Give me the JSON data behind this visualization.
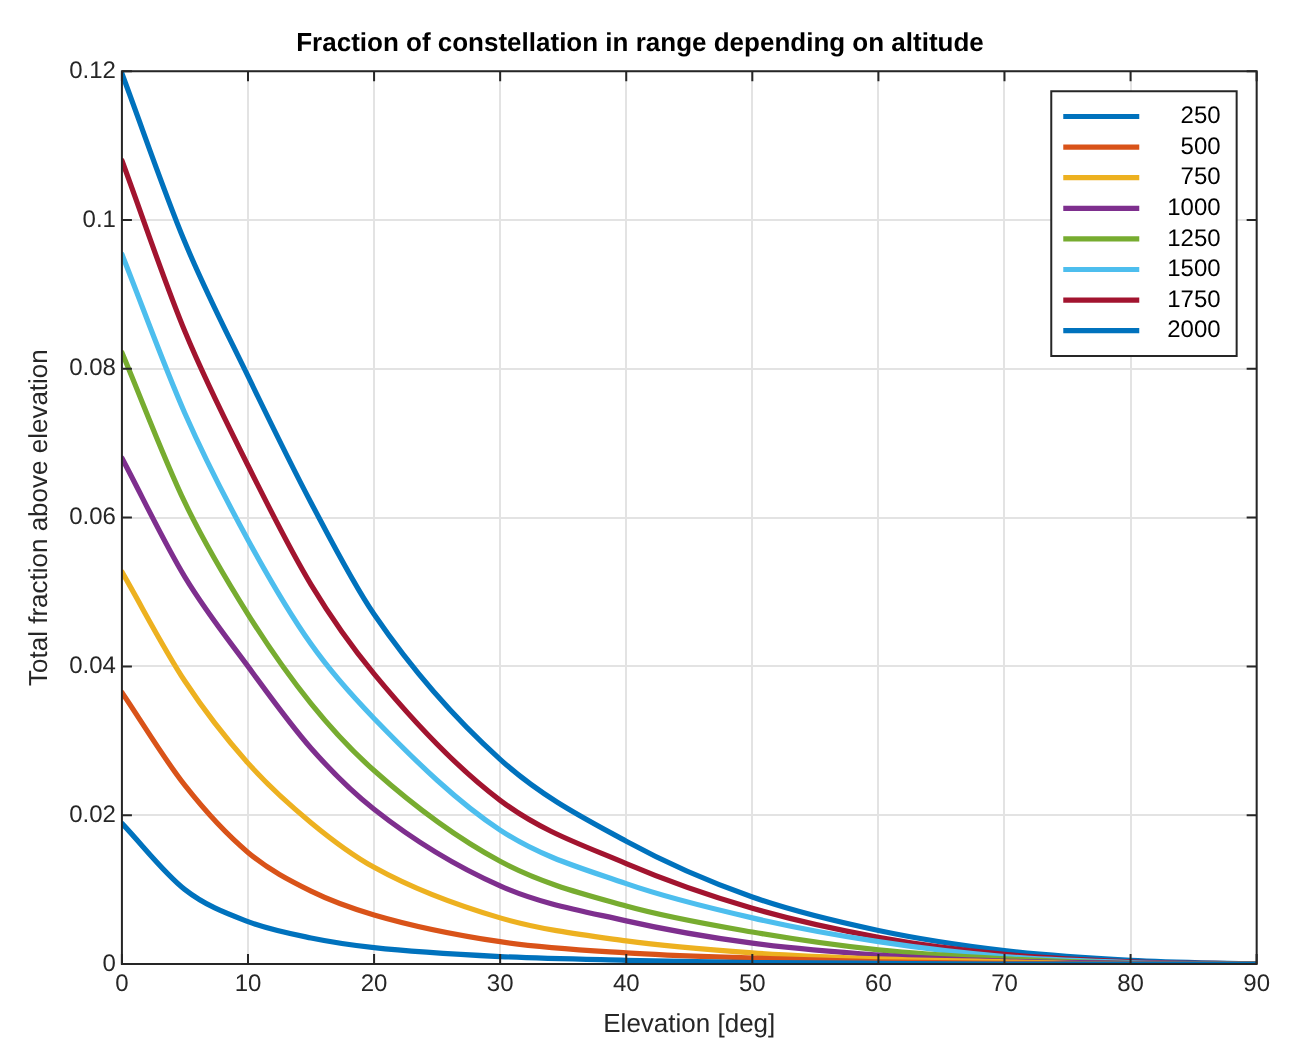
{
  "chart_data": {
    "type": "line",
    "title": "Fraction of constellation in range depending on altitude",
    "xlabel": "Elevation [deg]",
    "ylabel": "Total fraction above elevation",
    "x": [
      0,
      5,
      10,
      15,
      20,
      30,
      40,
      50,
      60,
      70,
      80,
      90
    ],
    "series": [
      {
        "name": "250",
        "color": "#0072bd",
        "values": [
          0.0189,
          0.01,
          0.0057,
          0.0035,
          0.0022,
          0.001,
          0.0005,
          0.0002,
          0.0001,
          0,
          0,
          0
        ]
      },
      {
        "name": "500",
        "color": "#d95319",
        "values": [
          0.0365,
          0.024,
          0.015,
          0.0098,
          0.0066,
          0.003,
          0.0015,
          0.0008,
          0.0003,
          0.0001,
          0,
          0
        ]
      },
      {
        "name": "750",
        "color": "#edb120",
        "values": [
          0.0527,
          0.038,
          0.027,
          0.019,
          0.013,
          0.0062,
          0.0031,
          0.0015,
          0.0007,
          0.0003,
          0,
          0
        ]
      },
      {
        "name": "1000",
        "color": "#7e2f8e",
        "values": [
          0.068,
          0.052,
          0.04,
          0.029,
          0.0208,
          0.0105,
          0.0058,
          0.0028,
          0.0012,
          0.0004,
          0.0001,
          0
        ]
      },
      {
        "name": "1250",
        "color": "#77ac30",
        "values": [
          0.0822,
          0.062,
          0.047,
          0.035,
          0.026,
          0.0138,
          0.0078,
          0.0043,
          0.0019,
          0.0007,
          0.0001,
          0
        ]
      },
      {
        "name": "1500",
        "color": "#4dbeee",
        "values": [
          0.0954,
          0.074,
          0.057,
          0.043,
          0.033,
          0.018,
          0.0108,
          0.0062,
          0.003,
          0.001,
          0.0002,
          0
        ]
      },
      {
        "name": "1750",
        "color": "#a2142f",
        "values": [
          0.108,
          0.085,
          0.067,
          0.051,
          0.039,
          0.022,
          0.0135,
          0.0075,
          0.0036,
          0.0013,
          0.0003,
          0
        ]
      },
      {
        "name": "2000",
        "color": "#0072bd",
        "values": [
          0.1197,
          0.097,
          0.079,
          0.062,
          0.047,
          0.0275,
          0.0165,
          0.009,
          0.0045,
          0.0018,
          0.0005,
          0
        ]
      }
    ],
    "xlim": [
      0,
      90
    ],
    "xticks": [
      0,
      10,
      20,
      30,
      40,
      50,
      60,
      70,
      80,
      90
    ],
    "ylim": [
      0,
      0.12
    ],
    "yticks": [
      0,
      0.02,
      0.04,
      0.06,
      0.08,
      0.1,
      0.12
    ],
    "grid": true,
    "legend": "top right",
    "marker": "none",
    "line_style": "solid"
  }
}
